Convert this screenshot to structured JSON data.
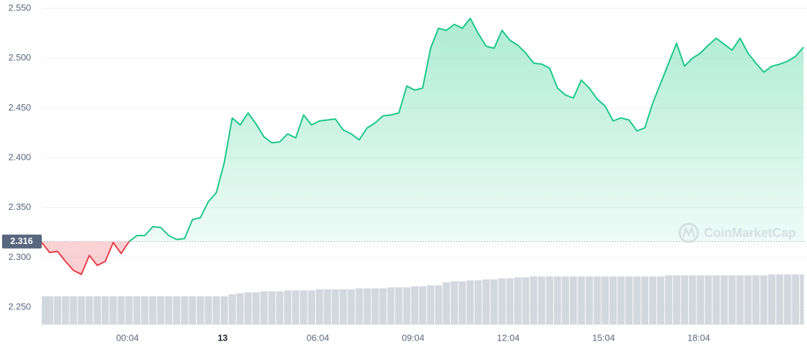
{
  "chart_data": {
    "type": "line",
    "x": [
      -2.7,
      -2.45,
      -2.2,
      -1.95,
      -1.7,
      -1.45,
      -1.2,
      -0.95,
      -0.7,
      -0.45,
      -0.2,
      0.05,
      0.3,
      0.55,
      0.8,
      1.05,
      1.3,
      1.55,
      1.8,
      2.05,
      2.3,
      2.55,
      2.8,
      3.05,
      3.3,
      3.55,
      3.8,
      4.05,
      4.3,
      4.55,
      4.8,
      5.05,
      5.3,
      5.55,
      5.8,
      6.05,
      6.3,
      6.55,
      6.8,
      7.05,
      7.3,
      7.55,
      7.8,
      8.05,
      8.3,
      8.55,
      8.8,
      9.05,
      9.3,
      9.55,
      9.8,
      10.05,
      10.3,
      10.55,
      10.8,
      11.05,
      11.3,
      11.55,
      11.8,
      12.05,
      12.3,
      12.55,
      12.8,
      13.05,
      13.3,
      13.55,
      13.8,
      14.05,
      14.3,
      14.55,
      14.8,
      15.05,
      15.3,
      15.55,
      15.8,
      16.05,
      16.3,
      16.55,
      16.8,
      17.05,
      17.3,
      17.55,
      17.8,
      18.05,
      18.3,
      18.55,
      18.8,
      19.05,
      19.3,
      19.55,
      19.8,
      20.05,
      20.3,
      20.55,
      20.8,
      21.05,
      21.3
    ],
    "values": [
      2.315,
      2.305,
      2.306,
      2.296,
      2.287,
      2.283,
      2.302,
      2.292,
      2.296,
      2.315,
      2.304,
      2.316,
      2.322,
      2.322,
      2.331,
      2.33,
      2.322,
      2.318,
      2.319,
      2.338,
      2.34,
      2.356,
      2.365,
      2.395,
      2.44,
      2.433,
      2.445,
      2.434,
      2.421,
      2.415,
      2.416,
      2.424,
      2.42,
      2.443,
      2.433,
      2.437,
      2.438,
      2.439,
      2.428,
      2.424,
      2.418,
      2.43,
      2.435,
      2.442,
      2.443,
      2.445,
      2.472,
      2.468,
      2.47,
      2.51,
      2.53,
      2.528,
      2.534,
      2.53,
      2.54,
      2.525,
      2.512,
      2.51,
      2.528,
      2.518,
      2.513,
      2.505,
      2.495,
      2.494,
      2.49,
      2.47,
      2.463,
      2.46,
      2.478,
      2.47,
      2.459,
      2.452,
      2.437,
      2.44,
      2.438,
      2.427,
      2.43,
      2.455,
      2.475,
      2.495,
      2.515,
      2.492,
      2.5,
      2.505,
      2.513,
      2.52,
      2.514,
      2.508,
      2.52,
      2.505,
      2.495,
      2.486,
      2.492,
      2.494,
      2.497,
      2.502,
      2.511
    ],
    "volume": [
      2.261,
      2.261,
      2.261,
      2.261,
      2.261,
      2.261,
      2.261,
      2.261,
      2.261,
      2.261,
      2.261,
      2.261,
      2.261,
      2.261,
      2.261,
      2.261,
      2.261,
      2.261,
      2.261,
      2.261,
      2.261,
      2.261,
      2.261,
      2.261,
      2.263,
      2.264,
      2.265,
      2.265,
      2.266,
      2.266,
      2.266,
      2.267,
      2.267,
      2.267,
      2.267,
      2.268,
      2.268,
      2.268,
      2.268,
      2.268,
      2.269,
      2.269,
      2.269,
      2.269,
      2.27,
      2.27,
      2.27,
      2.271,
      2.271,
      2.272,
      2.272,
      2.275,
      2.276,
      2.276,
      2.277,
      2.277,
      2.278,
      2.278,
      2.279,
      2.279,
      2.28,
      2.28,
      2.281,
      2.281,
      2.281,
      2.281,
      2.281,
      2.281,
      2.281,
      2.281,
      2.281,
      2.281,
      2.281,
      2.281,
      2.281,
      2.281,
      2.281,
      2.281,
      2.281,
      2.282,
      2.282,
      2.282,
      2.282,
      2.282,
      2.282,
      2.282,
      2.282,
      2.282,
      2.282,
      2.282,
      2.282,
      2.282,
      2.283,
      2.283,
      2.283,
      2.283,
      2.283
    ],
    "baseline": 2.316,
    "up_color": "#16c784",
    "down_color": "#ea3943",
    "volume_color": "#d3d7de",
    "xlim": [
      -2.7,
      21.3
    ],
    "ylim": [
      2.2326,
      2.5584
    ],
    "xticks": [
      {
        "value": 0,
        "label": "00:04"
      },
      {
        "value": 3,
        "label": "13"
      },
      {
        "value": 6,
        "label": "06:04"
      },
      {
        "value": 9,
        "label": "09:04"
      },
      {
        "value": 12,
        "label": "12:04"
      },
      {
        "value": 15,
        "label": "15:04"
      },
      {
        "value": 18,
        "label": "18:04"
      }
    ],
    "yticks": [
      {
        "value": 2.25,
        "label": "2.250"
      },
      {
        "value": 2.3,
        "label": "2.300"
      },
      {
        "value": 2.35,
        "label": "2.350"
      },
      {
        "value": 2.4,
        "label": "2.400"
      },
      {
        "value": 2.45,
        "label": "2.450"
      },
      {
        "value": 2.5,
        "label": "2.500"
      },
      {
        "value": 2.55,
        "label": "2.550"
      }
    ],
    "grid": true,
    "watermark": "CoinMarketCap"
  }
}
